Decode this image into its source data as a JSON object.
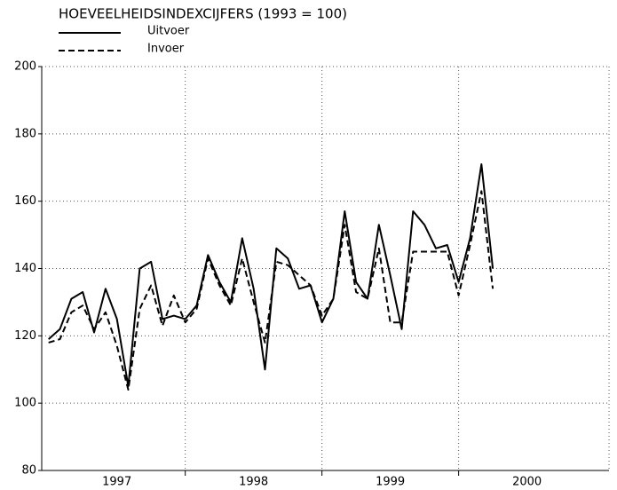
{
  "chart_data": {
    "type": "line",
    "title": "HOEVEELHEIDSINDEXCIJFERS (1993 = 100)",
    "x": [
      1997,
      1997.0833,
      1997.1667,
      1997.25,
      1997.3333,
      1997.4167,
      1997.5,
      1997.5833,
      1997.6667,
      1997.75,
      1997.8333,
      1997.9167,
      1998,
      1998.0833,
      1998.1667,
      1998.25,
      1998.3333,
      1998.4167,
      1998.5,
      1998.5833,
      1998.6667,
      1998.75,
      1998.8333,
      1998.9167,
      1999,
      1999.0833,
      1999.1667,
      1999.25,
      1999.3333,
      1999.4167,
      1999.5,
      1999.5833,
      1999.6667,
      1999.75,
      1999.8333,
      1999.9167,
      2000,
      2000.0833,
      2000.1667,
      2000.25
    ],
    "series": [
      {
        "name": "Uitvoer",
        "color": "#000000",
        "dash": "solid",
        "values": [
          119,
          122,
          131,
          133,
          121,
          134,
          125,
          105,
          140,
          142,
          125,
          126,
          125,
          129,
          144,
          136,
          130,
          149,
          134,
          110,
          146,
          143,
          134,
          135,
          124,
          131,
          157,
          136,
          131,
          153,
          138,
          122,
          157,
          153,
          146,
          147,
          136,
          149,
          171,
          140
        ]
      },
      {
        "name": "Invoer",
        "color": "#000000",
        "dash": "dashed",
        "values": [
          118,
          119,
          127,
          129,
          122,
          127,
          117,
          104,
          128,
          135,
          123,
          132,
          124,
          128,
          143,
          135,
          129,
          143,
          130,
          118,
          142,
          141,
          138,
          135,
          126,
          131,
          153,
          133,
          131,
          146,
          124,
          124,
          145,
          145,
          145,
          145,
          132,
          147,
          163,
          134
        ]
      }
    ],
    "x_labels": [
      {
        "value": 1997.5,
        "label": "1997"
      },
      {
        "value": 1998.5,
        "label": "1998"
      },
      {
        "value": 1999.5,
        "label": "1999"
      },
      {
        "value": 2000.5,
        "label": "2000"
      }
    ],
    "xlim": [
      1996.95,
      2001.1
    ],
    "xticks": [
      1998,
      1999,
      2000
    ],
    "ylim": [
      80,
      200
    ],
    "yticks": [
      80,
      100,
      120,
      140,
      160,
      180,
      200
    ],
    "grid": true
  }
}
